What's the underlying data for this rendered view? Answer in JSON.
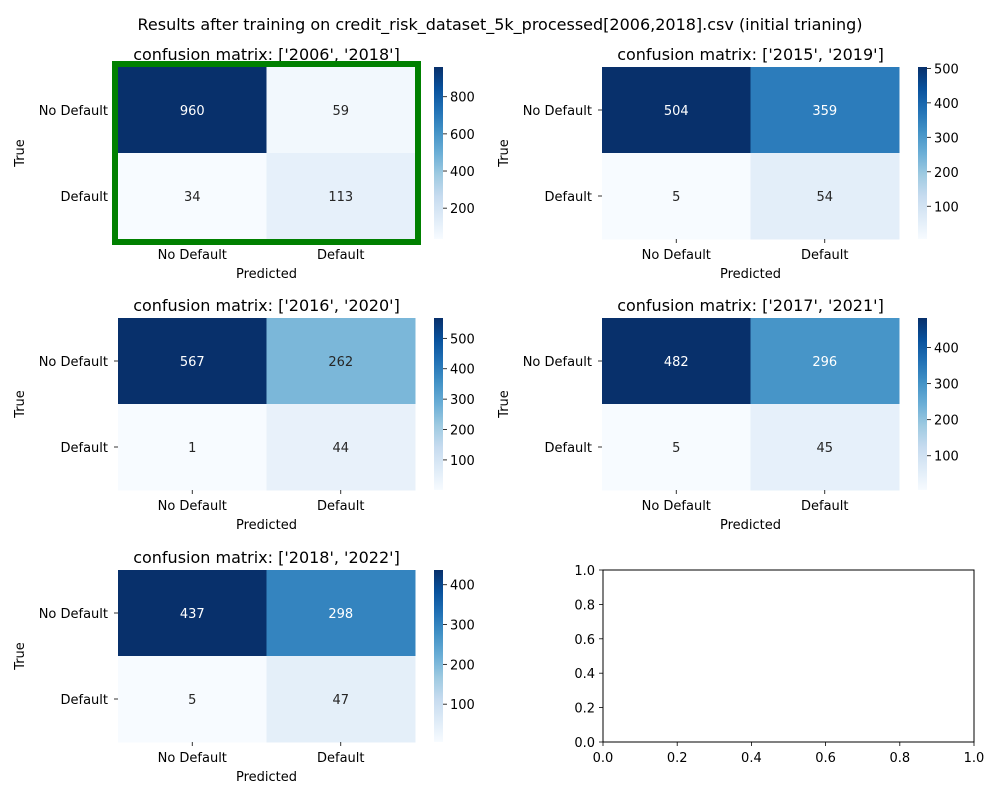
{
  "suptitle": "Results after training on credit_risk_dataset_5k_processed[2006,2018].csv (initial trianing)",
  "colormap": "Blues",
  "highlight_color": "#008000",
  "chart_data": [
    {
      "type": "heatmap",
      "title": "confusion matrix: ['2006', '2018']",
      "xlabel": "Predicted",
      "ylabel": "True",
      "x_categories": [
        "No Default",
        "Default"
      ],
      "y_categories": [
        "No Default",
        "Default"
      ],
      "values": [
        [
          960,
          59
        ],
        [
          34,
          113
        ]
      ],
      "colorbar_ticks": [
        "200",
        "400",
        "600",
        "800"
      ],
      "highlighted": true
    },
    {
      "type": "heatmap",
      "title": "confusion matrix: ['2015', '2019']",
      "xlabel": "Predicted",
      "ylabel": "True",
      "x_categories": [
        "No Default",
        "Default"
      ],
      "y_categories": [
        "No Default",
        "Default"
      ],
      "values": [
        [
          504,
          359
        ],
        [
          5,
          54
        ]
      ],
      "colorbar_ticks": [
        "100",
        "200",
        "300",
        "400",
        "500"
      ],
      "highlighted": false
    },
    {
      "type": "heatmap",
      "title": "confusion matrix: ['2016', '2020']",
      "xlabel": "Predicted",
      "ylabel": "True",
      "x_categories": [
        "No Default",
        "Default"
      ],
      "y_categories": [
        "No Default",
        "Default"
      ],
      "values": [
        [
          567,
          262
        ],
        [
          1,
          44
        ]
      ],
      "colorbar_ticks": [
        "100",
        "200",
        "300",
        "400",
        "500"
      ],
      "highlighted": false
    },
    {
      "type": "heatmap",
      "title": "confusion matrix: ['2017', '2021']",
      "xlabel": "Predicted",
      "ylabel": "True",
      "x_categories": [
        "No Default",
        "Default"
      ],
      "y_categories": [
        "No Default",
        "Default"
      ],
      "values": [
        [
          482,
          296
        ],
        [
          5,
          45
        ]
      ],
      "colorbar_ticks": [
        "100",
        "200",
        "300",
        "400"
      ],
      "highlighted": false
    },
    {
      "type": "heatmap",
      "title": "confusion matrix: ['2018', '2022']",
      "xlabel": "Predicted",
      "ylabel": "True",
      "x_categories": [
        "No Default",
        "Default"
      ],
      "y_categories": [
        "No Default",
        "Default"
      ],
      "values": [
        [
          437,
          298
        ],
        [
          5,
          47
        ]
      ],
      "colorbar_ticks": [
        "100",
        "200",
        "300",
        "400"
      ],
      "highlighted": false
    },
    {
      "type": "scatter",
      "title": "",
      "x": [],
      "y": [],
      "xlim": [
        0,
        1
      ],
      "ylim": [
        0,
        1
      ],
      "xticks": [
        "0.0",
        "0.2",
        "0.4",
        "0.6",
        "0.8",
        "1.0"
      ],
      "yticks": [
        "0.0",
        "0.2",
        "0.4",
        "0.6",
        "0.8",
        "1.0"
      ]
    }
  ]
}
